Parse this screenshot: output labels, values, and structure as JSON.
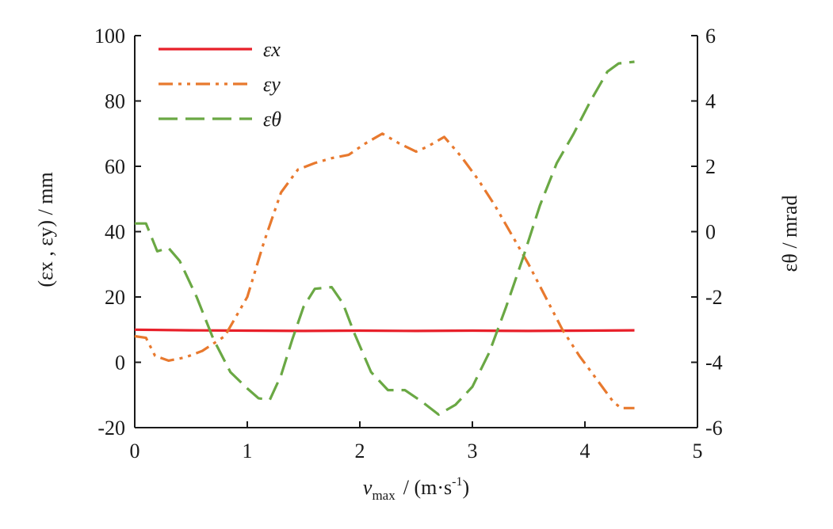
{
  "chart_data": {
    "type": "line",
    "x_axis": {
      "label_var": "v",
      "label_sub": "max",
      "label_unit_pre": "/ (m·s",
      "label_unit_sup": "-1",
      "label_unit_post": ")",
      "ticks": [
        "0",
        "1",
        "2",
        "3",
        "4",
        "5"
      ],
      "range": [
        0,
        5
      ]
    },
    "y_left": {
      "label": "(εx , εy) / mm",
      "ticks": [
        "-20",
        "0",
        "20",
        "40",
        "60",
        "80",
        "100"
      ],
      "range": [
        -20,
        100
      ]
    },
    "y_right": {
      "label": "εθ / mrad",
      "ticks": [
        "-6",
        "-4",
        "-2",
        "0",
        "2",
        "4",
        "6"
      ],
      "range": [
        -6,
        6
      ]
    },
    "legend": {
      "position": "top-left",
      "entries": [
        "εx",
        "εy",
        "εθ"
      ]
    },
    "colors": {
      "epsilon_x": "#e8202a",
      "epsilon_y": "#e8792e",
      "epsilon_theta": "#6aa844"
    },
    "series": [
      {
        "name": "εx",
        "axis": "left",
        "style": "solid",
        "x": [
          0,
          0.5,
          1.0,
          1.5,
          2.0,
          2.5,
          3.0,
          3.5,
          4.0,
          4.44
        ],
        "y": [
          10,
          9.8,
          9.7,
          9.6,
          9.7,
          9.6,
          9.7,
          9.6,
          9.7,
          9.8
        ]
      },
      {
        "name": "εy",
        "axis": "left",
        "style": "dash-dot-dot",
        "x": [
          0,
          0.1,
          0.18,
          0.3,
          0.45,
          0.6,
          0.8,
          1.0,
          1.15,
          1.3,
          1.45,
          1.6,
          1.75,
          1.9,
          2.05,
          2.2,
          2.35,
          2.5,
          2.6,
          2.75,
          2.9,
          3.05,
          3.2,
          3.35,
          3.5,
          3.65,
          3.8,
          3.95,
          4.1,
          4.25,
          4.32,
          4.44
        ],
        "y": [
          8,
          7.5,
          2,
          0.5,
          1.5,
          3.5,
          8,
          20,
          37,
          52,
          59,
          61,
          62.5,
          63.5,
          67,
          70,
          67,
          64.5,
          66,
          69,
          63,
          56,
          48,
          39,
          30,
          20,
          10,
          2,
          -5,
          -12,
          -14,
          -14
        ]
      },
      {
        "name": "εθ",
        "axis": "right",
        "style": "long-dash",
        "x": [
          0,
          0.1,
          0.2,
          0.3,
          0.4,
          0.55,
          0.7,
          0.85,
          1.0,
          1.1,
          1.2,
          1.3,
          1.4,
          1.5,
          1.6,
          1.75,
          1.85,
          1.95,
          2.1,
          2.25,
          2.4,
          2.55,
          2.7,
          2.85,
          3.0,
          3.15,
          3.3,
          3.45,
          3.6,
          3.75,
          3.9,
          4.05,
          4.2,
          4.3,
          4.44
        ],
        "y": [
          0.25,
          0.25,
          -0.6,
          -0.5,
          -0.9,
          -2.0,
          -3.3,
          -4.3,
          -4.8,
          -5.1,
          -5.15,
          -4.4,
          -3.3,
          -2.3,
          -1.75,
          -1.7,
          -2.2,
          -3.1,
          -4.3,
          -4.85,
          -4.85,
          -5.2,
          -5.6,
          -5.3,
          -4.75,
          -3.7,
          -2.3,
          -0.8,
          0.8,
          2.1,
          3.0,
          4.0,
          4.9,
          5.15,
          5.2
        ]
      }
    ]
  }
}
